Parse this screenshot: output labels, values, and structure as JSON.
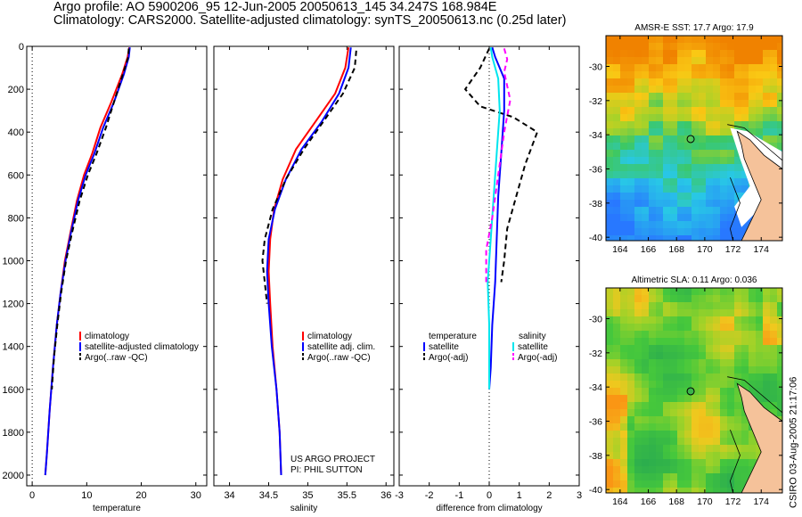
{
  "header": {
    "title_line1": "Argo profile: AO 5900206_95 12-Jun-2005 20050613_145 34.247S 168.984E",
    "title_line2": "Climatology: CARS2000. Satellite-adjusted climatology: synTS_20050613.nc (0.25d later)",
    "stamp": "CSIRO 03-Aug-2005 21:17:06"
  },
  "colors": {
    "red": "#ff0000",
    "blue": "#0000ff",
    "black": "#000000",
    "cyan": "#00e5ee",
    "magenta": "#ff00ff"
  },
  "chart_data": [
    {
      "type": "line",
      "xlabel": "temperature",
      "xlim": [
        -1,
        32
      ],
      "ylim": [
        0,
        2050
      ],
      "xticks": [
        0,
        10,
        20,
        30
      ],
      "yticks": [
        0,
        200,
        400,
        600,
        800,
        1000,
        1200,
        1400,
        1600,
        1800,
        2000
      ],
      "legend": [
        "climatology",
        "satellite-adjusted climatology",
        "Argo(..raw -QC)"
      ],
      "series": [
        {
          "name": "climatology",
          "color": "red",
          "dash": false,
          "points": [
            [
              17.8,
              5
            ],
            [
              17.5,
              50
            ],
            [
              16.5,
              130
            ],
            [
              14.5,
              260
            ],
            [
              12.5,
              380
            ],
            [
              11,
              500
            ],
            [
              9.5,
              600
            ],
            [
              8.2,
              720
            ],
            [
              7,
              870
            ],
            [
              6,
              1000
            ],
            [
              5.2,
              1150
            ],
            [
              4.5,
              1300
            ],
            [
              3.8,
              1500
            ],
            [
              3.2,
              1700
            ],
            [
              2.7,
              1900
            ],
            [
              2.4,
              2000
            ]
          ]
        },
        {
          "name": "satellite-adjusted climatology",
          "color": "blue",
          "dash": false,
          "points": [
            [
              17.9,
              5
            ],
            [
              17.7,
              50
            ],
            [
              16.8,
              130
            ],
            [
              15,
              260
            ],
            [
              13,
              380
            ],
            [
              11.4,
              500
            ],
            [
              9.8,
              600
            ],
            [
              8.4,
              720
            ],
            [
              7.1,
              870
            ],
            [
              6.1,
              1000
            ],
            [
              5.2,
              1150
            ],
            [
              4.5,
              1300
            ],
            [
              3.8,
              1500
            ],
            [
              3.2,
              1700
            ],
            [
              2.7,
              1900
            ],
            [
              2.4,
              2000
            ]
          ]
        },
        {
          "name": "Argo(..raw -QC)",
          "color": "black",
          "dash": true,
          "points": [
            [
              17.7,
              10
            ],
            [
              17.6,
              50
            ],
            [
              16.5,
              140
            ],
            [
              15,
              260
            ],
            [
              13.5,
              380
            ],
            [
              11.8,
              500
            ],
            [
              10.2,
              600
            ],
            [
              8.7,
              720
            ],
            [
              7.3,
              870
            ],
            [
              6.2,
              1000
            ],
            [
              5.3,
              1150
            ],
            [
              4.6,
              1300
            ],
            [
              4,
              1450
            ],
            [
              3.6,
              1600
            ]
          ]
        }
      ]
    },
    {
      "type": "line",
      "xlabel": "salinity",
      "xlim": [
        33.8,
        36.1
      ],
      "ylim": [
        0,
        2050
      ],
      "xticks": [
        34,
        34.5,
        35,
        35.5,
        36
      ],
      "yticks": [],
      "legend": [
        "climatology",
        "satellite adj. clim.",
        "Argo(..raw -QC)"
      ],
      "annotation": [
        "US ARGO PROJECT",
        "PI: PHIL SUTTON"
      ],
      "series": [
        {
          "name": "climatology",
          "color": "red",
          "dash": false,
          "points": [
            [
              35.52,
              5
            ],
            [
              35.48,
              100
            ],
            [
              35.35,
              220
            ],
            [
              35.1,
              350
            ],
            [
              34.85,
              480
            ],
            [
              34.68,
              620
            ],
            [
              34.57,
              760
            ],
            [
              34.52,
              900
            ],
            [
              34.5,
              1050
            ],
            [
              34.52,
              1200
            ],
            [
              34.55,
              1400
            ],
            [
              34.6,
              1600
            ],
            [
              34.64,
              1800
            ],
            [
              34.66,
              2000
            ]
          ]
        },
        {
          "name": "satellite adj. clim.",
          "color": "blue",
          "dash": false,
          "points": [
            [
              35.55,
              5
            ],
            [
              35.52,
              100
            ],
            [
              35.4,
              220
            ],
            [
              35.18,
              350
            ],
            [
              34.92,
              480
            ],
            [
              34.72,
              620
            ],
            [
              34.58,
              760
            ],
            [
              34.5,
              900
            ],
            [
              34.48,
              1050
            ],
            [
              34.5,
              1200
            ],
            [
              34.54,
              1400
            ],
            [
              34.6,
              1600
            ],
            [
              34.64,
              1800
            ],
            [
              34.66,
              2000
            ]
          ]
        },
        {
          "name": "Argo(..raw -QC)",
          "color": "black",
          "dash": true,
          "points": [
            [
              35.62,
              20
            ],
            [
              35.6,
              100
            ],
            [
              35.45,
              220
            ],
            [
              35.2,
              350
            ],
            [
              34.95,
              480
            ],
            [
              34.72,
              620
            ],
            [
              34.55,
              760
            ],
            [
              34.45,
              900
            ],
            [
              34.42,
              1000
            ],
            [
              34.45,
              1100
            ],
            [
              34.48,
              1200
            ]
          ]
        }
      ]
    },
    {
      "type": "line",
      "xlabel": "difference from climatology",
      "xlim": [
        -3,
        3
      ],
      "ylim": [
        0,
        2050
      ],
      "xticks": [
        -3,
        -2,
        -1,
        0,
        1,
        2,
        3
      ],
      "yticks": [],
      "legend_left": [
        "temperature",
        "satellite",
        "Argo(-adj)"
      ],
      "legend_right": [
        "salinity",
        "satellite",
        "Argo(-adj)"
      ],
      "series": [
        {
          "name": "temperature satellite",
          "color": "blue",
          "dash": false,
          "points": [
            [
              0.1,
              5
            ],
            [
              0.2,
              50
            ],
            [
              0.5,
              150
            ],
            [
              0.5,
              300
            ],
            [
              0.4,
              500
            ],
            [
              0.3,
              700
            ],
            [
              0.25,
              900
            ],
            [
              0.2,
              1100
            ],
            [
              0.1,
              1300
            ],
            [
              0.05,
              1500
            ],
            [
              0,
              1600
            ]
          ]
        },
        {
          "name": "temperature Argo(-adj)",
          "color": "black",
          "dash": true,
          "points": [
            [
              0,
              10
            ],
            [
              -0.3,
              100
            ],
            [
              -0.8,
              200
            ],
            [
              -0.3,
              280
            ],
            [
              0.8,
              330
            ],
            [
              1.6,
              400
            ],
            [
              1.2,
              550
            ],
            [
              0.9,
              700
            ],
            [
              0.6,
              850
            ],
            [
              0.5,
              1000
            ],
            [
              0.4,
              1100
            ]
          ]
        },
        {
          "name": "salinity satellite",
          "color": "cyan",
          "dash": false,
          "points": [
            [
              0.05,
              5
            ],
            [
              0.1,
              50
            ],
            [
              0.3,
              150
            ],
            [
              0.35,
              300
            ],
            [
              0.25,
              500
            ],
            [
              0.15,
              700
            ],
            [
              0.05,
              900
            ],
            [
              -0.05,
              1100
            ],
            [
              0,
              1300
            ],
            [
              0,
              1500
            ],
            [
              0,
              1600
            ]
          ]
        },
        {
          "name": "salinity Argo(-adj)",
          "color": "magenta",
          "dash": true,
          "points": [
            [
              0.5,
              10
            ],
            [
              0.6,
              60
            ],
            [
              0.5,
              120
            ],
            [
              0.7,
              250
            ],
            [
              0.5,
              400
            ],
            [
              0.3,
              600
            ],
            [
              0.1,
              800
            ],
            [
              -0.1,
              950
            ],
            [
              -0.1,
              1100
            ]
          ]
        }
      ]
    },
    {
      "type": "heatmap",
      "title": "AMSR-E SST: 17.7 Argo: 17.9",
      "xticks": [
        164,
        166,
        168,
        170,
        172,
        174
      ],
      "yticks": [
        -30,
        -32,
        -34,
        -36,
        -38,
        -40
      ],
      "xlim": [
        163,
        175.5
      ],
      "ylim": [
        -40.2,
        -28.2
      ],
      "marker": [
        169,
        -34.25
      ]
    },
    {
      "type": "heatmap",
      "title": "Altimetric SLA: 0.11 Argo: 0.036",
      "xticks": [
        164,
        166,
        168,
        170,
        172,
        174
      ],
      "yticks": [
        -30,
        -32,
        -34,
        -36,
        -38,
        -40
      ],
      "xlim": [
        163,
        175.5
      ],
      "ylim": [
        -40.2,
        -28.2
      ],
      "marker": [
        169,
        -34.25
      ]
    }
  ]
}
